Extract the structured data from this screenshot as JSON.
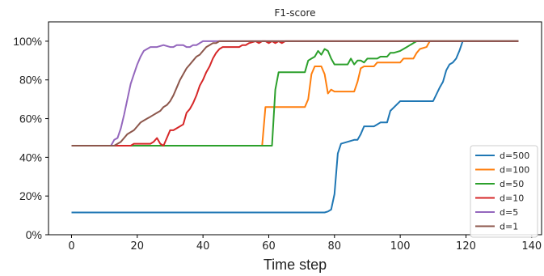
{
  "chart_data": {
    "type": "line",
    "title": "F1-score",
    "xlabel": "Time step",
    "ylabel": "",
    "xlim": [
      -7,
      143
    ],
    "ylim": [
      0,
      1.1
    ],
    "xticks": [
      0,
      20,
      40,
      60,
      80,
      100,
      120,
      140
    ],
    "xtick_labels": [
      "0",
      "20",
      "40",
      "60",
      "80",
      "100",
      "120",
      "140"
    ],
    "yticks": [
      0,
      0.2,
      0.4,
      0.6,
      0.8,
      1.0
    ],
    "ytick_labels": [
      "0%",
      "20%",
      "40%",
      "60%",
      "80%",
      "100%"
    ],
    "grid": false,
    "legend_position": "lower-right",
    "series": [
      {
        "name": "d=500",
        "color": "#1f77b4",
        "x": [
          0,
          77,
          78,
          79,
          80,
          81,
          82,
          84,
          86,
          87,
          88,
          89,
          92,
          93,
          94,
          96,
          97,
          100,
          101,
          110,
          112,
          113,
          114,
          115,
          116,
          117,
          118,
          119,
          136
        ],
        "y": [
          0.115,
          0.115,
          0.12,
          0.13,
          0.21,
          0.42,
          0.47,
          0.48,
          0.49,
          0.49,
          0.52,
          0.56,
          0.56,
          0.57,
          0.58,
          0.58,
          0.64,
          0.69,
          0.69,
          0.69,
          0.76,
          0.79,
          0.85,
          0.88,
          0.89,
          0.91,
          0.95,
          1.0,
          1.0
        ]
      },
      {
        "name": "d=100",
        "color": "#ff7f0e",
        "x": [
          0,
          58,
          59,
          71,
          72,
          73,
          74,
          75,
          76,
          77,
          78,
          79,
          80,
          81,
          82,
          86,
          87,
          88,
          89,
          92,
          93,
          100,
          101,
          104,
          105,
          106,
          108,
          109,
          136
        ],
        "y": [
          0.46,
          0.46,
          0.66,
          0.66,
          0.7,
          0.83,
          0.87,
          0.87,
          0.87,
          0.83,
          0.73,
          0.75,
          0.74,
          0.74,
          0.74,
          0.74,
          0.79,
          0.86,
          0.87,
          0.87,
          0.89,
          0.89,
          0.91,
          0.91,
          0.94,
          0.96,
          0.97,
          1.0,
          1.0
        ]
      },
      {
        "name": "d=50",
        "color": "#2ca02c",
        "x": [
          0,
          61,
          62,
          63,
          70,
          71,
          72,
          73,
          74,
          75,
          76,
          77,
          78,
          79,
          80,
          84,
          85,
          86,
          87,
          88,
          89,
          90,
          92,
          93,
          94,
          96,
          97,
          98,
          100,
          101,
          102,
          103,
          104,
          105,
          136
        ],
        "y": [
          0.46,
          0.46,
          0.75,
          0.84,
          0.84,
          0.84,
          0.9,
          0.91,
          0.92,
          0.95,
          0.93,
          0.96,
          0.95,
          0.91,
          0.88,
          0.88,
          0.91,
          0.88,
          0.9,
          0.9,
          0.89,
          0.91,
          0.91,
          0.91,
          0.92,
          0.92,
          0.94,
          0.94,
          0.95,
          0.96,
          0.97,
          0.98,
          0.99,
          1.0,
          1.0
        ]
      },
      {
        "name": "d=10",
        "color": "#d62728",
        "x": [
          0,
          18,
          19,
          23,
          24,
          25,
          26,
          27,
          28,
          29,
          30,
          31,
          32,
          34,
          35,
          36,
          37,
          38,
          39,
          40,
          41,
          42,
          43,
          44,
          45,
          46,
          51,
          52,
          53,
          54,
          56,
          57,
          58,
          59,
          60,
          61,
          62,
          63,
          64,
          65,
          136
        ],
        "y": [
          0.46,
          0.46,
          0.47,
          0.47,
          0.47,
          0.48,
          0.5,
          0.47,
          0.46,
          0.5,
          0.54,
          0.54,
          0.55,
          0.57,
          0.63,
          0.65,
          0.68,
          0.72,
          0.77,
          0.8,
          0.84,
          0.87,
          0.91,
          0.94,
          0.96,
          0.97,
          0.97,
          0.98,
          0.98,
          0.99,
          1.0,
          0.99,
          1.0,
          1.0,
          0.99,
          1.0,
          0.99,
          1.0,
          0.99,
          1.0,
          1.0
        ]
      },
      {
        "name": "d=5",
        "color": "#9467bd",
        "x": [
          0,
          11,
          12,
          13,
          14,
          15,
          16,
          17,
          18,
          19,
          20,
          21,
          22,
          23,
          24,
          25,
          26,
          28,
          30,
          31,
          32,
          34,
          35,
          36,
          37,
          38,
          39,
          40,
          136
        ],
        "y": [
          0.46,
          0.46,
          0.46,
          0.49,
          0.5,
          0.55,
          0.62,
          0.7,
          0.78,
          0.83,
          0.88,
          0.92,
          0.95,
          0.96,
          0.97,
          0.97,
          0.97,
          0.98,
          0.97,
          0.97,
          0.98,
          0.98,
          0.97,
          0.97,
          0.98,
          0.98,
          0.99,
          1.0,
          1.0
        ]
      },
      {
        "name": "d=1",
        "color": "#8c564b",
        "x": [
          0,
          12,
          13,
          14,
          15,
          16,
          17,
          18,
          19,
          20,
          21,
          22,
          23,
          24,
          25,
          26,
          27,
          28,
          29,
          30,
          31,
          32,
          33,
          34,
          35,
          36,
          37,
          38,
          39,
          40,
          41,
          42,
          43,
          44,
          45,
          136
        ],
        "y": [
          0.46,
          0.46,
          0.46,
          0.47,
          0.48,
          0.5,
          0.52,
          0.53,
          0.54,
          0.56,
          0.58,
          0.59,
          0.6,
          0.61,
          0.62,
          0.63,
          0.64,
          0.66,
          0.67,
          0.69,
          0.72,
          0.76,
          0.8,
          0.83,
          0.86,
          0.88,
          0.9,
          0.92,
          0.93,
          0.95,
          0.97,
          0.98,
          0.99,
          0.99,
          1.0,
          1.0
        ]
      }
    ]
  }
}
